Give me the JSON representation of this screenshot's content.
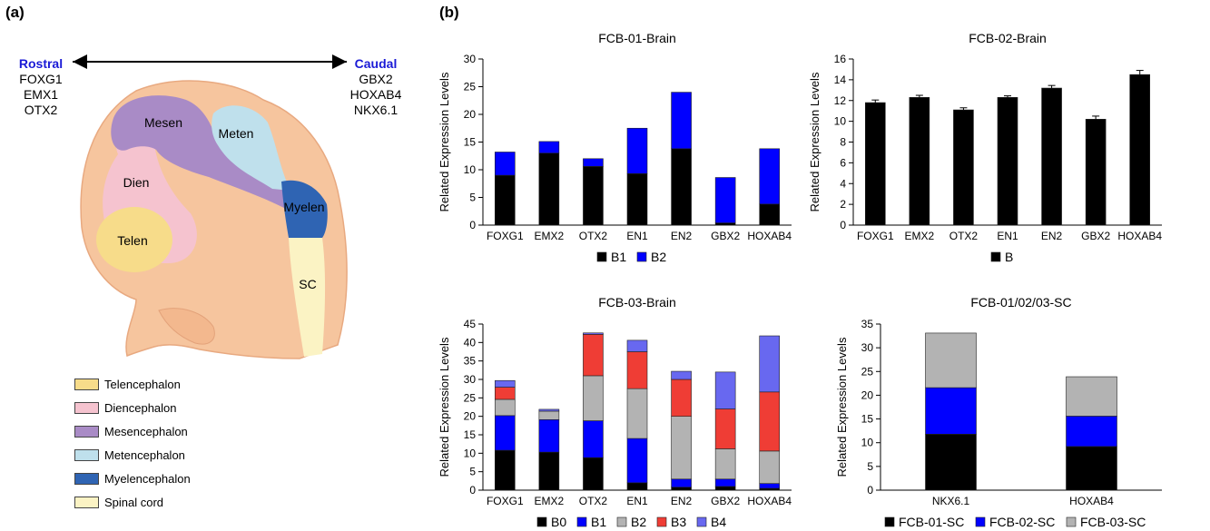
{
  "panel_a": {
    "label": "(a)",
    "rostral": {
      "title": "Rostral",
      "genes": [
        "FOXG1",
        "EMX1",
        "OTX2"
      ]
    },
    "caudal": {
      "title": "Caudal",
      "genes": [
        "GBX2",
        "HOXAB4",
        "NKX6.1"
      ]
    },
    "regions": {
      "mesen": "Mesen",
      "meten": "Meten",
      "dien": "Dien",
      "telen": "Telen",
      "myelen": "Myelen",
      "sc": "SC"
    },
    "legend": [
      {
        "label": "Telencephalon",
        "color": "#f7dc8a"
      },
      {
        "label": "Diencephalon",
        "color": "#f5c3cf"
      },
      {
        "label": "Mesencephalon",
        "color": "#a98bc6"
      },
      {
        "label": "Metencephalon",
        "color": "#bfe0ec"
      },
      {
        "label": "Myelencephalon",
        "color": "#2f64b3"
      },
      {
        "label": "Spinal cord",
        "color": "#fbf3c4"
      }
    ]
  },
  "panel_b": {
    "label": "(b)"
  },
  "chart_data": [
    {
      "type": "bar",
      "stacked": true,
      "title": "FCB-01-Brain",
      "ylabel": "Related Expression Levels",
      "ylim": [
        0,
        30
      ],
      "yticks": [
        0,
        5,
        10,
        15,
        20,
        25,
        30
      ],
      "categories": [
        "FOXG1",
        "EMX2",
        "OTX2",
        "EN1",
        "EN2",
        "GBX2",
        "HOXAB4"
      ],
      "series": [
        {
          "name": "B1",
          "color": "#000000",
          "values": [
            9.0,
            13.0,
            10.6,
            9.3,
            13.8,
            0.4,
            3.8
          ]
        },
        {
          "name": "B2",
          "color": "#0000ff",
          "values": [
            4.2,
            2.1,
            1.4,
            8.2,
            10.2,
            8.2,
            10.0
          ]
        }
      ]
    },
    {
      "type": "bar",
      "stacked": true,
      "title": "FCB-02-Brain",
      "ylabel": "Related Expression Levels",
      "ylim": [
        0,
        16
      ],
      "yticks": [
        0,
        2,
        4,
        6,
        8,
        10,
        12,
        14,
        16
      ],
      "categories": [
        "FOXG1",
        "EMX2",
        "OTX2",
        "EN1",
        "EN2",
        "GBX2",
        "HOXAB4"
      ],
      "error_bars": [
        0.25,
        0.2,
        0.2,
        0.15,
        0.25,
        0.3,
        0.4
      ],
      "series": [
        {
          "name": "B",
          "color": "#000000",
          "values": [
            11.8,
            12.3,
            11.1,
            12.3,
            13.2,
            10.2,
            14.5
          ]
        }
      ]
    },
    {
      "type": "bar",
      "stacked": true,
      "title": "FCB-03-Brain",
      "ylabel": "Related Expression Levels",
      "ylim": [
        0,
        45
      ],
      "yticks": [
        0,
        5,
        10,
        15,
        20,
        25,
        30,
        35,
        40,
        45
      ],
      "categories": [
        "FOXG1",
        "EMX2",
        "OTX2",
        "EN1",
        "EN2",
        "GBX2",
        "HOXAB4"
      ],
      "series": [
        {
          "name": "B0",
          "color": "#000000",
          "values": [
            10.8,
            10.3,
            8.8,
            2.0,
            0.8,
            1.0,
            0.5
          ]
        },
        {
          "name": "B1",
          "color": "#0000ff",
          "values": [
            9.4,
            8.8,
            10.0,
            12.0,
            2.2,
            2.0,
            1.3
          ]
        },
        {
          "name": "B2",
          "color": "#b3b3b3",
          "values": [
            4.4,
            2.3,
            12.2,
            13.5,
            17.0,
            8.2,
            8.8
          ]
        },
        {
          "name": "B3",
          "color": "#ef3d35",
          "values": [
            3.3,
            0.0,
            11.2,
            10.0,
            10.0,
            10.8,
            16.0
          ]
        },
        {
          "name": "B4",
          "color": "#6868f0",
          "values": [
            1.8,
            0.5,
            0.4,
            3.1,
            2.2,
            10.0,
            15.2
          ]
        }
      ]
    },
    {
      "type": "bar",
      "stacked": true,
      "title": "FCB-01/02/03-SC",
      "ylabel": "Related Expression Levels",
      "ylim": [
        0,
        35
      ],
      "yticks": [
        0,
        5,
        10,
        15,
        20,
        25,
        30,
        35
      ],
      "categories": [
        "NKX6.1",
        "HOXAB4"
      ],
      "series": [
        {
          "name": "FCB-01-SC",
          "color": "#000000",
          "values": [
            11.8,
            9.2
          ]
        },
        {
          "name": "FCB-02-SC",
          "color": "#0000ff",
          "values": [
            9.8,
            6.4
          ]
        },
        {
          "name": "FCB-03-SC",
          "color": "#b3b3b3",
          "values": [
            11.5,
            8.3
          ]
        }
      ]
    }
  ]
}
